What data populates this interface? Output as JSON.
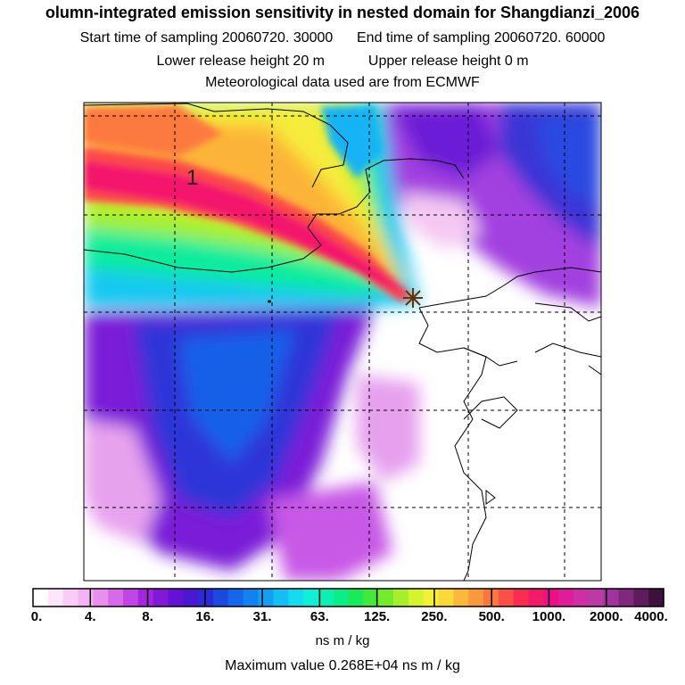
{
  "header": {
    "title": "olumn-integrated emission sensitivity in nested domain for Shangdianzi_2006",
    "start_label": "Start time of sampling 20060720. 30000",
    "end_label": "End time of sampling 20060720. 60000",
    "lower_label": "Lower release height   20 m",
    "upper_label": "Upper release height    0 m",
    "met_label": "Meteorological data used are from ECMWF"
  },
  "map": {
    "contour_label": "1",
    "station_marker": "star-marker"
  },
  "colorbar": {
    "ticks": [
      "0.",
      "4.",
      "8.",
      "16.",
      "31.",
      "63.",
      "125.",
      "250.",
      "500.",
      "1000.",
      "2000.",
      "4000."
    ],
    "units": "ns m / kg",
    "colors": [
      "#ffffff",
      "#fde6fb",
      "#f9ccf6",
      "#f4b3f2",
      "#e990ee",
      "#d76ae9",
      "#c046e4",
      "#a326de",
      "#8418d8",
      "#6612d4",
      "#4a17d2",
      "#2a2ad6",
      "#1a4ae0",
      "#1466ea",
      "#1282f0",
      "#13a0f4",
      "#14bff6",
      "#13dcf0",
      "#10efd8",
      "#0cf0b4",
      "#0aee88",
      "#18ea5a",
      "#44e83a",
      "#74ec2c",
      "#a6f02a",
      "#d4f42e",
      "#f4f03a",
      "#fcd838",
      "#fcb83a",
      "#fc983c",
      "#fc7640",
      "#fc5046",
      "#fa2c52",
      "#f41a6a",
      "#ec1086",
      "#e01c9a",
      "#d02ea6",
      "#bc3aa6",
      "#a0349c",
      "#80287e",
      "#5e1c5c",
      "#3e103e"
    ]
  },
  "footer": {
    "max_label": "Maximum value  0.268E+04 ns m / kg"
  }
}
